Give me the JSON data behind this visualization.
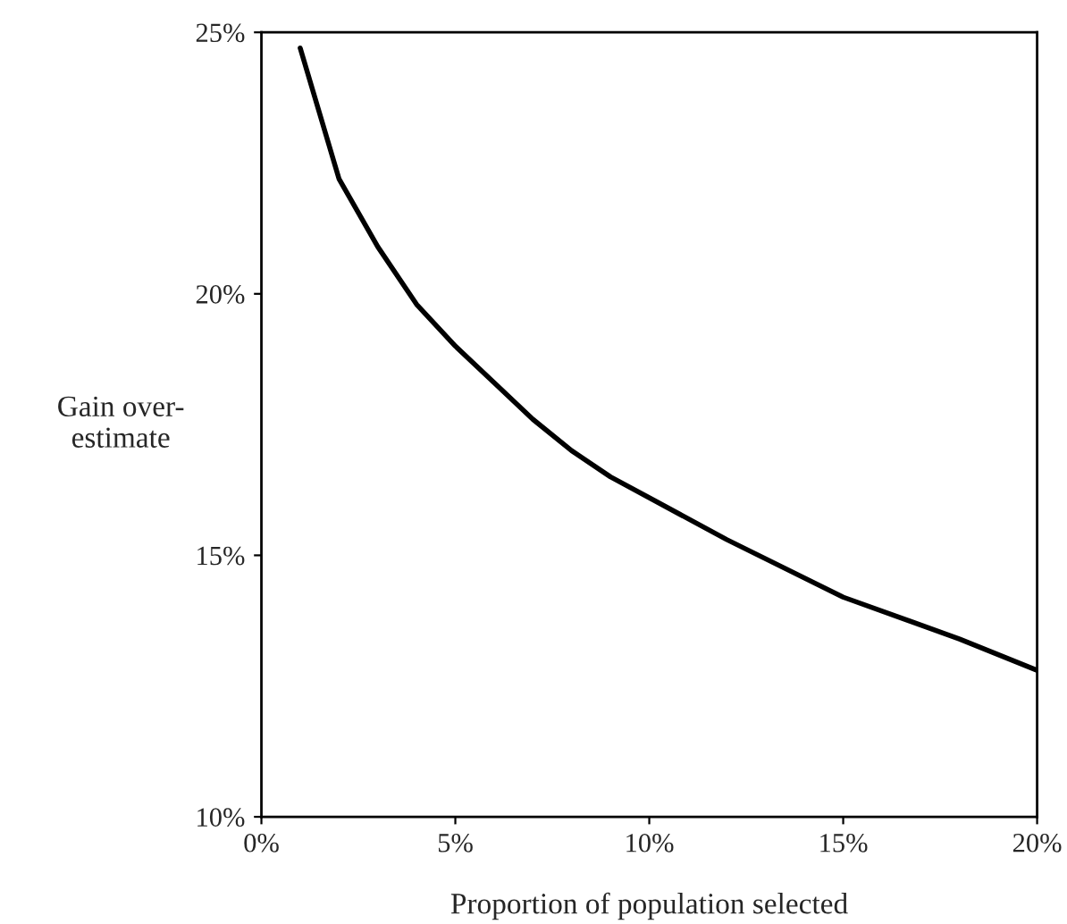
{
  "chart_data": {
    "type": "line",
    "xlabel": "Proportion of population selected",
    "ylabel": "Gain over-\nestimate",
    "x": [
      1,
      2,
      3,
      4,
      5,
      6,
      7,
      8,
      9,
      10,
      12,
      15,
      18,
      20
    ],
    "series": [
      {
        "color": "#000000",
        "values": [
          24.7,
          22.2,
          20.9,
          19.8,
          19.0,
          18.3,
          17.6,
          17.0,
          16.5,
          16.1,
          15.3,
          14.2,
          13.4,
          12.8
        ]
      }
    ],
    "xlim": [
      0,
      20
    ],
    "ylim": [
      10,
      25
    ],
    "xticks": [
      {
        "value": 0,
        "label": "0%"
      },
      {
        "value": 5,
        "label": "5%"
      },
      {
        "value": 10,
        "label": "10%"
      },
      {
        "value": 15,
        "label": "15%"
      },
      {
        "value": 20,
        "label": "20%"
      }
    ],
    "yticks": [
      {
        "value": 10,
        "label": "10%"
      },
      {
        "value": 15,
        "label": "15%"
      },
      {
        "value": 20,
        "label": "20%"
      },
      {
        "value": 25,
        "label": "25%"
      }
    ],
    "grid": false,
    "legend": false,
    "marker": "none",
    "line_style": "solid"
  }
}
